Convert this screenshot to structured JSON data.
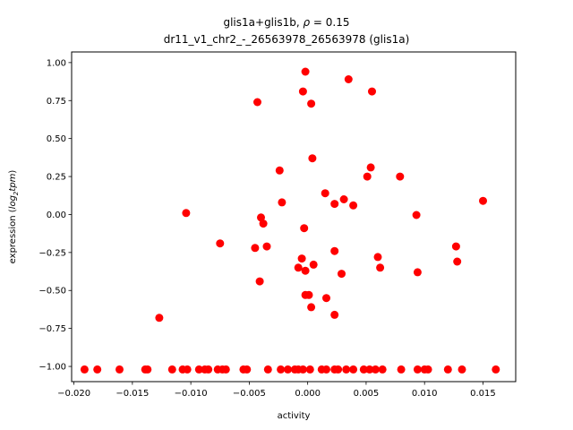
{
  "chart_data": {
    "type": "scatter",
    "title_line1": "glis1a+glis1b, ",
    "title_rho_symbol": "ρ",
    "title_rho_value": " = 0.15",
    "title_line2": "dr11_v1_chr2_-_26563978_26563978 (glis1a)",
    "xlabel": "activity",
    "ylabel_prefix": "expression (",
    "ylabel_log": "log",
    "ylabel_sub": "2",
    "ylabel_tpm": "tpm",
    "ylabel_suffix": ")",
    "xlim": [
      -0.0202,
      0.0178
    ],
    "ylim": [
      -1.1,
      1.07
    ],
    "xticks": [
      -0.02,
      -0.015,
      -0.01,
      -0.005,
      0.0,
      0.005,
      0.01,
      0.015
    ],
    "xtick_labels": [
      "−0.020",
      "−0.015",
      "−0.010",
      "−0.005",
      "0.000",
      "0.005",
      "0.010",
      "0.015"
    ],
    "yticks": [
      -1.0,
      -0.75,
      -0.5,
      -0.25,
      0.0,
      0.25,
      0.5,
      0.75,
      1.0
    ],
    "ytick_labels": [
      "−1.00",
      "−0.75",
      "−0.50",
      "−0.25",
      "0.00",
      "0.25",
      "0.50",
      "0.75",
      "1.00"
    ],
    "marker_color": "#ff0000",
    "grid": false,
    "points": [
      [
        -0.0002,
        0.94
      ],
      [
        0.0035,
        0.89
      ],
      [
        -0.0004,
        0.81
      ],
      [
        0.0055,
        0.81
      ],
      [
        -0.0043,
        0.74
      ],
      [
        0.0003,
        0.73
      ],
      [
        0.0004,
        0.37
      ],
      [
        0.0054,
        0.31
      ],
      [
        -0.0024,
        0.29
      ],
      [
        0.0051,
        0.25
      ],
      [
        0.0079,
        0.25
      ],
      [
        0.0015,
        0.14
      ],
      [
        0.0031,
        0.1
      ],
      [
        0.015,
        0.09
      ],
      [
        -0.0022,
        0.08
      ],
      [
        0.0023,
        0.07
      ],
      [
        0.0039,
        0.06
      ],
      [
        -0.0104,
        0.01
      ],
      [
        -0.004,
        -0.02
      ],
      [
        0.0093,
        -0.003
      ],
      [
        -0.0038,
        -0.06
      ],
      [
        -0.0003,
        -0.09
      ],
      [
        -0.0075,
        -0.19
      ],
      [
        -0.0045,
        -0.22
      ],
      [
        -0.0035,
        -0.21
      ],
      [
        0.0127,
        -0.21
      ],
      [
        0.0023,
        -0.24
      ],
      [
        0.006,
        -0.28
      ],
      [
        -0.0005,
        -0.29
      ],
      [
        0.0128,
        -0.31
      ],
      [
        0.0005,
        -0.33
      ],
      [
        -0.0008,
        -0.35
      ],
      [
        -0.0002,
        -0.37
      ],
      [
        0.0062,
        -0.35
      ],
      [
        0.0029,
        -0.39
      ],
      [
        0.0094,
        -0.38
      ],
      [
        -0.0041,
        -0.44
      ],
      [
        -0.0002,
        -0.53
      ],
      [
        0.0001,
        -0.53
      ],
      [
        0.0016,
        -0.55
      ],
      [
        0.0003,
        -0.61
      ],
      [
        0.0023,
        -0.66
      ],
      [
        -0.0127,
        -0.68
      ],
      [
        -0.0191,
        -1.02
      ],
      [
        -0.018,
        -1.02
      ],
      [
        -0.0161,
        -1.02
      ],
      [
        -0.0139,
        -1.02
      ],
      [
        -0.0137,
        -1.02
      ],
      [
        -0.0116,
        -1.02
      ],
      [
        -0.0107,
        -1.02
      ],
      [
        -0.0103,
        -1.02
      ],
      [
        -0.0093,
        -1.02
      ],
      [
        -0.0088,
        -1.02
      ],
      [
        -0.0085,
        -1.02
      ],
      [
        -0.0077,
        -1.02
      ],
      [
        -0.0073,
        -1.02
      ],
      [
        -0.007,
        -1.02
      ],
      [
        -0.0055,
        -1.02
      ],
      [
        -0.0052,
        -1.02
      ],
      [
        -0.0034,
        -1.02
      ],
      [
        -0.0023,
        -1.02
      ],
      [
        -0.0017,
        -1.02
      ],
      [
        -0.0011,
        -1.02
      ],
      [
        -0.0008,
        -1.02
      ],
      [
        -0.0004,
        -1.02
      ],
      [
        0.0002,
        -1.02
      ],
      [
        0.0012,
        -1.02
      ],
      [
        0.0016,
        -1.02
      ],
      [
        0.0023,
        -1.02
      ],
      [
        0.0026,
        -1.02
      ],
      [
        0.0033,
        -1.02
      ],
      [
        0.0039,
        -1.02
      ],
      [
        0.0048,
        -1.02
      ],
      [
        0.0053,
        -1.02
      ],
      [
        0.0058,
        -1.02
      ],
      [
        0.0064,
        -1.02
      ],
      [
        0.008,
        -1.02
      ],
      [
        0.0094,
        -1.02
      ],
      [
        0.01,
        -1.02
      ],
      [
        0.0103,
        -1.02
      ],
      [
        0.012,
        -1.02
      ],
      [
        0.0132,
        -1.02
      ],
      [
        0.0161,
        -1.02
      ]
    ]
  }
}
